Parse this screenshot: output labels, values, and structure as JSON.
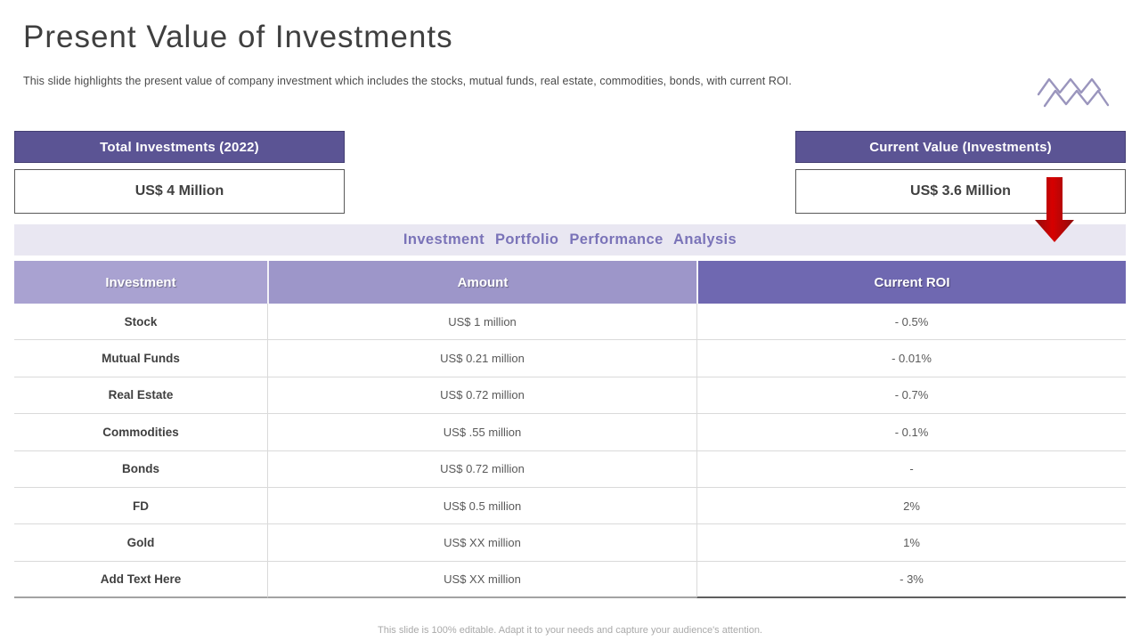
{
  "slide": {
    "title": "Present Value of Investments",
    "subtitle": "This slide highlights the present value of company investment which includes the stocks, mutual funds, real estate, commodities, bonds, with current ROI.",
    "footer": "This slide is 100% editable.  Adapt it to your needs and capture your audience's attention."
  },
  "stat_boxes": {
    "total_investments": {
      "label": "Total Investments (2022)",
      "value": "US$ 4 Million"
    },
    "current_value": {
      "label": "Current Value (Investments)",
      "value": "US$ 3.6 Million"
    }
  },
  "section_header": "Investment  Portfolio  Performance  Analysis",
  "table": {
    "columns": [
      "Investment",
      "Amount",
      "Current ROI"
    ],
    "rows": [
      [
        "Stock",
        "US$ 1 million",
        "- 0.5%"
      ],
      [
        "Mutual Funds",
        "US$ 0.21 million",
        "- 0.01%"
      ],
      [
        "Real Estate",
        "US$ 0.72 million",
        "- 0.7%"
      ],
      [
        "Commodities",
        "US$ .55 million",
        "- 0.1%"
      ],
      [
        "Bonds",
        "US$ 0.72 million",
        "-"
      ],
      [
        "FD",
        "US$ 0.5 million",
        "2%"
      ],
      [
        "Gold",
        "US$ XX million",
        "1%"
      ],
      [
        "Add Text Here",
        "US$ XX million",
        "- 3%"
      ]
    ]
  },
  "icons": {
    "logo": "zigzag-mountains-icon",
    "arrow": "red-down-arrow-icon"
  },
  "colors": {
    "dark_purple": "#5b5494",
    "header_col1": "#a9a2d1",
    "header_col2": "#9d96c9",
    "header_col3": "#6f68b1",
    "band_bg": "#e9e7f2",
    "band_text": "#7a73b8",
    "arrow_red": "#c00000",
    "logo_stroke": "#9a95bd"
  }
}
